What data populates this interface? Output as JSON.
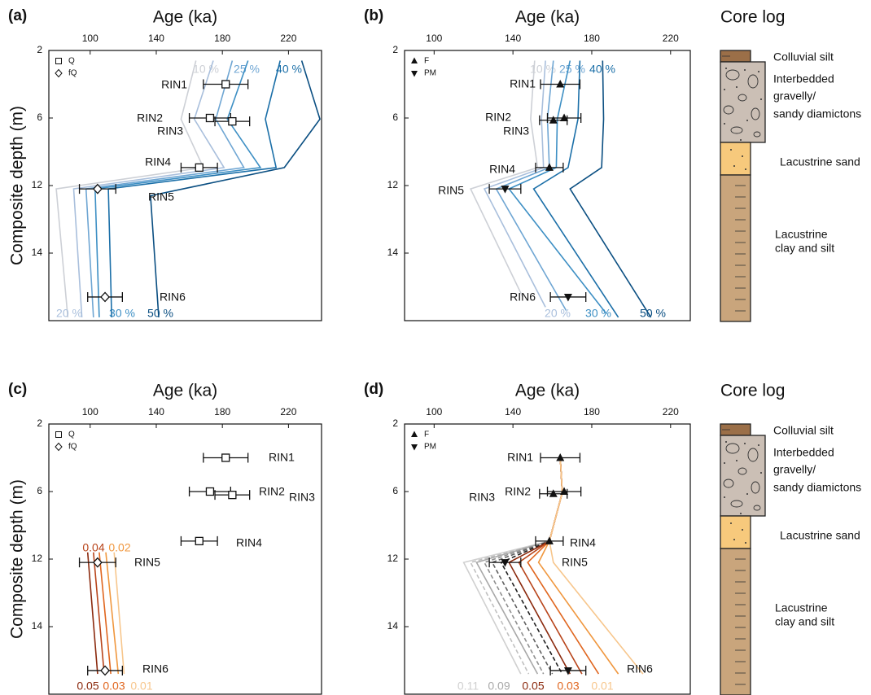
{
  "chart_data": [
    {
      "type": "line",
      "panel_label": "(a)",
      "title": "Age (ka)",
      "ylabel": "Composite depth (m)",
      "xlim": [
        75,
        240
      ],
      "xticks": [
        100,
        140,
        180,
        220
      ],
      "ylim": [
        2,
        16
      ],
      "yticks": [
        2,
        6,
        12,
        14
      ],
      "legend": [
        {
          "marker": "square",
          "label": "Q"
        },
        {
          "marker": "diamond",
          "label": "fQ"
        }
      ],
      "points": [
        {
          "label": "RIN1",
          "marker": "square",
          "age": 182,
          "error": 13.5,
          "depth": 4
        },
        {
          "label": "RIN2",
          "marker": "square",
          "age": 172.5,
          "error": 12.5,
          "depth": 6
        },
        {
          "label": "RIN3",
          "marker": "square",
          "age": 186,
          "error": 10.5,
          "depth": 6.3
        },
        {
          "label": "RIN4",
          "marker": "square",
          "age": 166,
          "error": 11,
          "depth": 10.4
        },
        {
          "label": "RIN5",
          "marker": "diamond",
          "age": 104.5,
          "error": 11,
          "depth": 12.1
        },
        {
          "label": "RIN6",
          "marker": "diamond",
          "age": 109,
          "error": 10.5,
          "depth": 15.3
        }
      ],
      "series": [
        {
          "name": "10 %",
          "color": "#cdd0d6",
          "x": [
            164,
            155,
            168.5,
            79.5,
            86.5
          ],
          "y": [
            2.6,
            6.1,
            10.4,
            12.1,
            15.9
          ]
        },
        {
          "name": "20 %",
          "color": "#a9bfdc",
          "x": [
            174.5,
            163,
            181,
            90,
            95
          ],
          "y": [
            2.6,
            6.1,
            10.4,
            12.1,
            15.9
          ]
        },
        {
          "name": "25 %",
          "color": "#6fa6d3",
          "x": [
            186,
            176,
            193,
            97.5,
            102
          ],
          "y": [
            2.6,
            6.1,
            10.4,
            12.1,
            15.9
          ]
        },
        {
          "name": "30 %",
          "color": "#3d8fc4",
          "x": [
            195.5,
            183,
            203,
            103,
            105.5
          ],
          "y": [
            2.6,
            6.1,
            10.4,
            12.1,
            15.9
          ]
        },
        {
          "name": "40 %",
          "color": "#1b6fa8",
          "x": [
            215,
            206,
            212.5,
            111,
            113
          ],
          "y": [
            2.6,
            6.1,
            10.4,
            12.1,
            15.9
          ]
        },
        {
          "name": "50 %",
          "color": "#0b4f82",
          "x": [
            228,
            239,
            217.5,
            136.5,
            141.5
          ],
          "y": [
            2.6,
            6.1,
            10.4,
            12.3,
            15.9
          ]
        }
      ]
    },
    {
      "type": "line",
      "panel_label": "(b)",
      "title": "Age (ka)",
      "xlim": [
        85,
        230
      ],
      "xticks": [
        100,
        140,
        180,
        220
      ],
      "ylim": [
        2,
        16
      ],
      "yticks": [
        2,
        6,
        12,
        14
      ],
      "legend": [
        {
          "marker": "up",
          "label": "F"
        },
        {
          "marker": "down",
          "label": "PM"
        }
      ],
      "points": [
        {
          "label": "RIN1",
          "marker": "up",
          "age": 164,
          "error": 10,
          "depth": 4
        },
        {
          "label": "RIN2",
          "marker": "up",
          "age": 166,
          "error": 8.5,
          "depth": 6
        },
        {
          "label": "RIN3",
          "marker": "up",
          "age": 160.5,
          "error": 7,
          "depth": 6.2
        },
        {
          "label": "RIN4",
          "marker": "up",
          "age": 158.5,
          "error": 7,
          "depth": 10.4
        },
        {
          "label": "RIN5",
          "marker": "down",
          "age": 136,
          "error": 8,
          "depth": 12.1
        },
        {
          "label": "RIN6",
          "marker": "down",
          "age": 168,
          "error": 9,
          "depth": 15.3
        }
      ],
      "series": [
        {
          "name": "10 %",
          "color": "#cdd0d6",
          "x": [
            151,
            149,
            152.5,
            118.5,
            145
          ],
          "y": [
            2.6,
            6.1,
            10.4,
            12.1,
            15.3
          ]
        },
        {
          "name": "20 %",
          "color": "#a9bfdc",
          "x": [
            156.5,
            154.5,
            155.5,
            125.5,
            156.5
          ],
          "y": [
            2.6,
            6.1,
            10.4,
            12.1,
            15.6
          ]
        },
        {
          "name": "25 %",
          "color": "#6fa6d3",
          "x": [
            160.5,
            157.5,
            158.5,
            131.5,
            167
          ],
          "y": [
            2.6,
            6.1,
            10.4,
            12.1,
            15.7
          ]
        },
        {
          "name": "30 %",
          "color": "#3d8fc4",
          "x": [
            169,
            162.5,
            162,
            138,
            187.5
          ],
          "y": [
            2.6,
            6.1,
            10.4,
            12.1,
            15.8
          ]
        },
        {
          "name": "40 %",
          "color": "#1b6fa8",
          "x": [
            174,
            173,
            168,
            150.5,
            193.5
          ],
          "y": [
            2.6,
            6.1,
            10.4,
            12.1,
            15.9
          ]
        },
        {
          "name": "50 %",
          "color": "#0b4f82",
          "x": [
            185.5,
            186,
            185,
            169,
            210
          ],
          "y": [
            2.6,
            6.1,
            10.4,
            12.1,
            15.9
          ]
        }
      ]
    },
    {
      "type": "line",
      "panel_label": "(c)",
      "title": "Age (ka)",
      "ylabel": "Composite depth (m)",
      "xlim": [
        75,
        240
      ],
      "xticks": [
        100,
        140,
        180,
        220
      ],
      "ylim": [
        2,
        16
      ],
      "yticks": [
        2,
        6,
        12,
        14
      ],
      "legend": [
        {
          "marker": "square",
          "label": "Q"
        },
        {
          "marker": "diamond",
          "label": "fQ"
        }
      ],
      "points": [
        {
          "label": "RIN1",
          "marker": "square",
          "age": 182,
          "error": 13.5,
          "depth": 4
        },
        {
          "label": "RIN2",
          "marker": "square",
          "age": 172.5,
          "error": 12.5,
          "depth": 6
        },
        {
          "label": "RIN3",
          "marker": "square",
          "age": 186,
          "error": 10.5,
          "depth": 6.3
        },
        {
          "label": "RIN4",
          "marker": "square",
          "age": 166,
          "error": 11,
          "depth": 10.4
        },
        {
          "label": "RIN5",
          "marker": "diamond",
          "age": 104.5,
          "error": 11,
          "depth": 12.1
        },
        {
          "label": "RIN6",
          "marker": "diamond",
          "age": 109,
          "error": 10.5,
          "depth": 15.3
        }
      ],
      "series": [
        {
          "name": "0.05",
          "color": "#8b2a0e",
          "x": [
            98.5,
            104.5
          ],
          "y": [
            11.4,
            15.4
          ]
        },
        {
          "name": "0.04",
          "color": "#b8441a",
          "x": [
            102,
            108.5
          ],
          "y": [
            11.4,
            15.4
          ]
        },
        {
          "name": "0.03",
          "color": "#e0661f",
          "x": [
            105.5,
            112.5
          ],
          "y": [
            11.4,
            15.4
          ]
        },
        {
          "name": "0.02",
          "color": "#f0973e",
          "x": [
            109.5,
            117
          ],
          "y": [
            11.4,
            15.4
          ]
        },
        {
          "name": "0.01",
          "color": "#f7c68c",
          "x": [
            114.5,
            120.5
          ],
          "y": [
            11.4,
            15.4
          ]
        }
      ]
    },
    {
      "type": "line",
      "panel_label": "(d)",
      "title": "Age (ka)",
      "xlim": [
        85,
        230
      ],
      "xticks": [
        100,
        140,
        180,
        220
      ],
      "ylim": [
        2,
        16
      ],
      "yticks": [
        2,
        6,
        12,
        14
      ],
      "legend": [
        {
          "marker": "up",
          "label": "F"
        },
        {
          "marker": "down",
          "label": "PM"
        }
      ],
      "points": [
        {
          "label": "RIN1",
          "marker": "up",
          "age": 164,
          "error": 10,
          "depth": 4
        },
        {
          "label": "RIN2",
          "marker": "up",
          "age": 166,
          "error": 8.5,
          "depth": 6
        },
        {
          "label": "RIN3",
          "marker": "up",
          "age": 160.5,
          "error": 7,
          "depth": 6.2
        },
        {
          "label": "RIN4",
          "marker": "up",
          "age": 158.5,
          "error": 7,
          "depth": 10.4
        },
        {
          "label": "RIN5",
          "marker": "down",
          "age": 136,
          "error": 8,
          "depth": 12.1
        },
        {
          "label": "RIN6",
          "marker": "down",
          "age": 168,
          "error": 9,
          "depth": 15.3
        }
      ],
      "series": [
        {
          "name": "0.11",
          "color": "#d0d0d0",
          "x": [
            164,
            165,
            158.5,
            115,
            144
          ],
          "y": [
            3.9,
            6.1,
            10.4,
            12.1,
            15.4
          ]
        },
        {
          "color": "#c0c0c0",
          "dash": true,
          "x": [
            164,
            165,
            158.5,
            118.5,
            148
          ],
          "y": [
            3.9,
            6.1,
            10.4,
            12.1,
            15.4
          ]
        },
        {
          "name": "0.09",
          "color": "#a8a8a8",
          "x": [
            164,
            165,
            158.5,
            121.5,
            152.5
          ],
          "y": [
            3.9,
            6.1,
            10.4,
            12.1,
            15.4
          ]
        },
        {
          "color": "#909090",
          "dash": true,
          "x": [
            164,
            165,
            158.5,
            125.5,
            155.5
          ],
          "y": [
            3.9,
            6.1,
            10.4,
            12.1,
            15.4
          ]
        },
        {
          "color": "#606060",
          "dash": true,
          "x": [
            164,
            165,
            158.5,
            129.5,
            160
          ],
          "y": [
            3.9,
            6.1,
            10.4,
            12.1,
            15.4
          ]
        },
        {
          "color": "#202020",
          "dash": true,
          "x": [
            164,
            165,
            158.5,
            134,
            165
          ],
          "y": [
            3.9,
            6.1,
            10.4,
            12.1,
            15.4
          ]
        },
        {
          "name": "0.05",
          "color": "#8b2a0e",
          "x": [
            164,
            165,
            158.5,
            138,
            169
          ],
          "y": [
            3.9,
            6.1,
            10.4,
            12.1,
            15.4
          ]
        },
        {
          "color": "#b8441a",
          "x": [
            164,
            165,
            158.5,
            143,
            175
          ],
          "y": [
            3.9,
            6.1,
            10.4,
            12.1,
            15.4
          ]
        },
        {
          "name": "0.03",
          "color": "#e0661f",
          "x": [
            164,
            165,
            158.5,
            147.5,
            183.5
          ],
          "y": [
            3.9,
            6.1,
            10.4,
            12.1,
            15.4
          ]
        },
        {
          "color": "#f0973e",
          "x": [
            164,
            165,
            158.5,
            153,
            193.5
          ],
          "y": [
            3.9,
            6.1,
            10.4,
            12.1,
            15.4
          ]
        },
        {
          "name": "0.01",
          "color": "#f7c68c",
          "x": [
            164,
            165,
            158.5,
            160.5,
            206
          ],
          "y": [
            3.9,
            6.1,
            10.4,
            12.1,
            15.4
          ]
        }
      ]
    }
  ],
  "core_logs": [
    {
      "title": "Core log",
      "units": [
        {
          "lines": [
            "Colluvial silt"
          ]
        },
        {
          "lines": [
            "Interbedded",
            "gravelly/",
            "sandy diamictons"
          ]
        },
        {
          "lines": [
            "Lacustrine sand"
          ]
        },
        {
          "lines": [
            "Lacustrine",
            "clay and silt"
          ]
        }
      ]
    },
    {
      "title": "Core log",
      "units": [
        {
          "lines": [
            "Colluvial silt"
          ]
        },
        {
          "lines": [
            "Interbedded",
            "gravelly/",
            "sandy diamictons"
          ]
        },
        {
          "lines": [
            "Lacustrine sand"
          ]
        },
        {
          "lines": [
            "Lacustrine",
            "clay and silt"
          ]
        }
      ]
    }
  ]
}
